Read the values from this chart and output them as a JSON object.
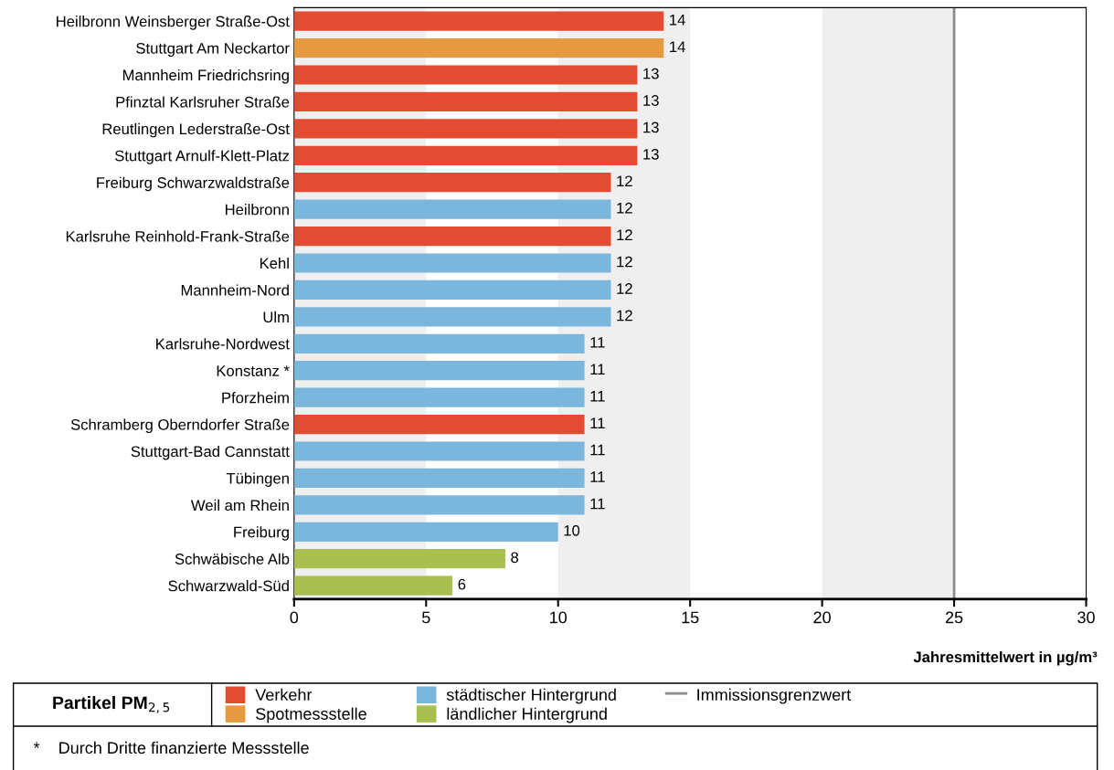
{
  "chart_data": {
    "type": "bar",
    "orientation": "horizontal",
    "title": "Partikel PM$_{2,5}$",
    "xlabel": "Jahresmittelwert in µg/m³",
    "categories": [
      "Heilbronn Weinsberger Straße-Ost",
      "Stuttgart Am Neckartor",
      "Mannheim Friedrichsring",
      "Pfinztal Karlsruher Straße",
      "Reutlingen Lederstraße-Ost",
      "Stuttgart Arnulf-Klett-Platz",
      "Freiburg Schwarzwaldstraße",
      "Heilbronn",
      "Karlsruhe Reinhold-Frank-Straße",
      "Kehl",
      "Mannheim-Nord",
      "Ulm",
      "Karlsruhe-Nordwest",
      "Konstanz *",
      "Pforzheim",
      "Schramberg Oberndorfer Straße",
      "Stuttgart-Bad Cannstatt",
      "Tübingen",
      "Weil am Rhein",
      "Freiburg",
      "Schwäbische Alb",
      "Schwarzwald-Süd"
    ],
    "series": [
      {
        "name": "Verkehr",
        "color": "#e34c33",
        "values": [
          14,
          null,
          13,
          13,
          13,
          13,
          12,
          null,
          12,
          null,
          null,
          null,
          null,
          null,
          null,
          11,
          null,
          null,
          null,
          null,
          null,
          null
        ]
      },
      {
        "name": "Spotmessstelle",
        "color": "#e59a40",
        "values": [
          null,
          14,
          null,
          null,
          null,
          null,
          null,
          null,
          null,
          null,
          null,
          null,
          null,
          null,
          null,
          null,
          null,
          null,
          null,
          null,
          null,
          null
        ]
      },
      {
        "name": "städtischer Hintergrund",
        "color": "#7bb7dc",
        "values": [
          null,
          null,
          null,
          null,
          null,
          null,
          null,
          12,
          null,
          12,
          12,
          12,
          11,
          11,
          11,
          null,
          11,
          11,
          11,
          10,
          null,
          null
        ]
      },
      {
        "name": "ländlicher Hintergrund",
        "color": "#a9bf4f",
        "values": [
          null,
          null,
          null,
          null,
          null,
          null,
          null,
          null,
          null,
          null,
          null,
          null,
          null,
          null,
          null,
          null,
          null,
          null,
          null,
          null,
          8,
          6
        ]
      }
    ],
    "xlim": [
      0,
      30
    ],
    "xticks": [
      0,
      5,
      10,
      15,
      20,
      25,
      30
    ],
    "bands": [
      {
        "axis": "x",
        "from": 0,
        "to": 5,
        "color": "#efefef"
      },
      {
        "axis": "x",
        "from": 10,
        "to": 15,
        "color": "#efefef"
      },
      {
        "axis": "x",
        "from": 20,
        "to": 25,
        "color": "#efefef"
      }
    ],
    "ref_lines": [
      {
        "axis": "x",
        "value": 25,
        "label": "Immissionsgrenzwert",
        "color": "#8c8c8c"
      }
    ],
    "data_labels": true,
    "legend": "bottom",
    "grid": false,
    "annotations": [
      "*    Durch Dritte finanzierte Messstelle"
    ]
  }
}
